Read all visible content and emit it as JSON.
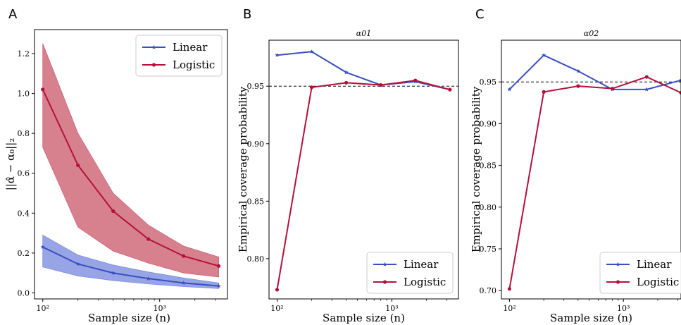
{
  "colors": {
    "linear": "#3a4fc0",
    "logistic": "#b5103a",
    "linear_band": "#7d8ee0",
    "logistic_band": "#cd6273",
    "ref_line": "#000000"
  },
  "chart_data": [
    {
      "type": "line",
      "panel_letter": "A",
      "title": "",
      "xlabel": "Sample size (n)",
      "ylabel": "||α̂ − α₀||₂",
      "xscale": "log",
      "x": [
        100,
        200,
        400,
        800,
        1600,
        3200
      ],
      "xlim": [
        85,
        3800
      ],
      "ylim": [
        -0.03,
        1.32
      ],
      "yticks": [
        0.0,
        0.2,
        0.4,
        0.6,
        0.8,
        1.0,
        1.2
      ],
      "ytick_labels": [
        "0.0",
        "0.2",
        "0.4",
        "0.6",
        "0.8",
        "1.0",
        "1.2"
      ],
      "xticks": [
        100,
        1000
      ],
      "xtick_labels": [
        "10²",
        "10³"
      ],
      "grid": false,
      "legend": "top-right",
      "series": [
        {
          "name": "Linear",
          "values": [
            0.23,
            0.145,
            0.1,
            0.072,
            0.05,
            0.035
          ],
          "band_low": [
            0.13,
            0.085,
            0.062,
            0.045,
            0.032,
            0.022
          ],
          "band_high": [
            0.29,
            0.19,
            0.14,
            0.105,
            0.075,
            0.05
          ],
          "color_key": "linear",
          "band_color_key": "linear_band",
          "marker": "star"
        },
        {
          "name": "Logistic",
          "values": [
            1.02,
            0.64,
            0.41,
            0.27,
            0.185,
            0.135
          ],
          "band_low": [
            0.73,
            0.33,
            0.21,
            0.15,
            0.1,
            0.08
          ],
          "band_high": [
            1.25,
            0.8,
            0.5,
            0.34,
            0.235,
            0.18
          ],
          "color_key": "logistic",
          "band_color_key": "logistic_band",
          "marker": "dot"
        }
      ]
    },
    {
      "type": "line",
      "panel_letter": "B",
      "title": "α01",
      "xlabel": "Sample size (n)",
      "ylabel": "Empirical coverage probability",
      "xscale": "log",
      "x": [
        100,
        200,
        400,
        800,
        1600,
        3200
      ],
      "xlim": [
        85,
        3800
      ],
      "ylim": [
        0.765,
        0.99
      ],
      "yticks": [
        0.8,
        0.85,
        0.9,
        0.95
      ],
      "ytick_labels": [
        "0.80",
        "0.85",
        "0.90",
        "0.95"
      ],
      "xticks": [
        100,
        1000
      ],
      "xtick_labels": [
        "10²",
        "10³"
      ],
      "grid": false,
      "legend": "bottom-right",
      "reference_line": 0.95,
      "series": [
        {
          "name": "Linear",
          "values": [
            0.977,
            0.98,
            0.962,
            0.951,
            0.954,
            0.947
          ],
          "color_key": "linear",
          "marker": "star"
        },
        {
          "name": "Logistic",
          "values": [
            0.773,
            0.949,
            0.953,
            0.951,
            0.955,
            0.947
          ],
          "color_key": "logistic",
          "marker": "dot"
        }
      ]
    },
    {
      "type": "line",
      "panel_letter": "C",
      "title": "α02",
      "xlabel": "Sample size (n)",
      "ylabel": "Empirical coverage probability",
      "xscale": "log",
      "x": [
        100,
        200,
        400,
        800,
        1600,
        3200
      ],
      "xlim": [
        85,
        3200
      ],
      "ylim": [
        0.69,
        1.0
      ],
      "yticks": [
        0.7,
        0.75,
        0.8,
        0.85,
        0.9,
        0.95
      ],
      "ytick_labels": [
        "0.70",
        "0.75",
        "0.80",
        "0.85",
        "0.90",
        "0.95"
      ],
      "xticks": [
        100,
        1000
      ],
      "xtick_labels": [
        "10²",
        "10³"
      ],
      "grid": false,
      "legend": "bottom-right",
      "reference_line": 0.95,
      "series": [
        {
          "name": "Linear",
          "values": [
            0.941,
            0.982,
            0.963,
            0.941,
            0.941,
            0.952
          ],
          "color_key": "linear",
          "marker": "star"
        },
        {
          "name": "Logistic",
          "values": [
            0.702,
            0.938,
            0.945,
            0.942,
            0.956,
            0.937
          ],
          "color_key": "logistic",
          "marker": "dot"
        }
      ]
    }
  ]
}
